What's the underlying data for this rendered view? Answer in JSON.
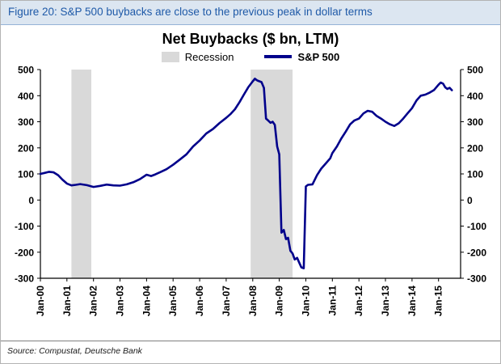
{
  "figure_caption": "Figure 20: S&P 500 buybacks are close to the previous peak in dollar terms",
  "source_note": "Source: Compustat, Deutsche Bank",
  "colors": {
    "line": "#00008b",
    "band": "#d9d9d9",
    "caption_text": "#1f5aa8",
    "caption_bg": "#dce6f1",
    "axis": "#000000"
  },
  "chart_data": {
    "type": "line",
    "title": "Net Buybacks ($ bn, LTM)",
    "legend": {
      "recession_label": "Recession",
      "series_label": "S&P 500"
    },
    "xlim": [
      2000,
      2015.83
    ],
    "ylim": [
      -300,
      500
    ],
    "yticks": [
      500,
      400,
      300,
      200,
      100,
      0,
      -100,
      -200,
      -300
    ],
    "x_tick_labels": [
      "Jan-00",
      "Jan-01",
      "Jan-02",
      "Jan-03",
      "Jan-04",
      "Jan-05",
      "Jan-06",
      "Jan-07",
      "Jan-08",
      "Jan-09",
      "Jan-10",
      "Jan-11",
      "Jan-12",
      "Jan-13",
      "Jan-14",
      "Jan-15"
    ],
    "x_tick_positions": [
      2000,
      2001,
      2002,
      2003,
      2004,
      2005,
      2006,
      2007,
      2008,
      2009,
      2010,
      2011,
      2012,
      2013,
      2014,
      2015
    ],
    "recession_bands": [
      [
        2001.17,
        2001.92
      ],
      [
        2007.92,
        2009.5
      ]
    ],
    "grid": false,
    "legend_position": "top-center",
    "series": [
      {
        "name": "S&P 500",
        "x": [
          2000.0,
          2000.17,
          2000.33,
          2000.5,
          2000.67,
          2000.83,
          2001.0,
          2001.17,
          2001.33,
          2001.5,
          2001.75,
          2002.0,
          2002.25,
          2002.5,
          2002.75,
          2003.0,
          2003.25,
          2003.5,
          2003.75,
          2004.0,
          2004.17,
          2004.33,
          2004.5,
          2004.75,
          2005.0,
          2005.25,
          2005.5,
          2005.75,
          2006.0,
          2006.25,
          2006.5,
          2006.75,
          2007.0,
          2007.17,
          2007.33,
          2007.5,
          2007.67,
          2007.83,
          2008.0,
          2008.08,
          2008.17,
          2008.33,
          2008.42,
          2008.5,
          2008.58,
          2008.67,
          2008.75,
          2008.83,
          2008.92,
          2009.0,
          2009.08,
          2009.17,
          2009.25,
          2009.33,
          2009.42,
          2009.5,
          2009.58,
          2009.67,
          2009.75,
          2009.83,
          2009.92,
          2010.0,
          2010.08,
          2010.25,
          2010.42,
          2010.58,
          2010.75,
          2010.92,
          2011.0,
          2011.17,
          2011.33,
          2011.5,
          2011.67,
          2011.83,
          2012.0,
          2012.17,
          2012.33,
          2012.5,
          2012.67,
          2012.83,
          2013.0,
          2013.17,
          2013.33,
          2013.5,
          2013.67,
          2013.83,
          2014.0,
          2014.17,
          2014.33,
          2014.5,
          2014.67,
          2014.83,
          2015.0,
          2015.08,
          2015.17,
          2015.25,
          2015.33,
          2015.42,
          2015.5
        ],
        "y": [
          100,
          104,
          108,
          106,
          95,
          78,
          63,
          56,
          58,
          61,
          57,
          50,
          54,
          59,
          56,
          55,
          60,
          68,
          80,
          97,
          92,
          98,
          106,
          118,
          135,
          155,
          175,
          205,
          228,
          255,
          272,
          295,
          315,
          330,
          348,
          375,
          405,
          432,
          455,
          465,
          458,
          452,
          430,
          312,
          305,
          296,
          300,
          288,
          205,
          175,
          -125,
          -115,
          -150,
          -145,
          -195,
          -205,
          -228,
          -222,
          -240,
          -258,
          -262,
          52,
          58,
          60,
          95,
          120,
          140,
          160,
          180,
          205,
          235,
          262,
          290,
          305,
          312,
          332,
          342,
          338,
          322,
          312,
          300,
          290,
          284,
          294,
          312,
          332,
          352,
          382,
          400,
          404,
          412,
          422,
          442,
          450,
          446,
          432,
          426,
          430,
          421
        ]
      }
    ]
  }
}
